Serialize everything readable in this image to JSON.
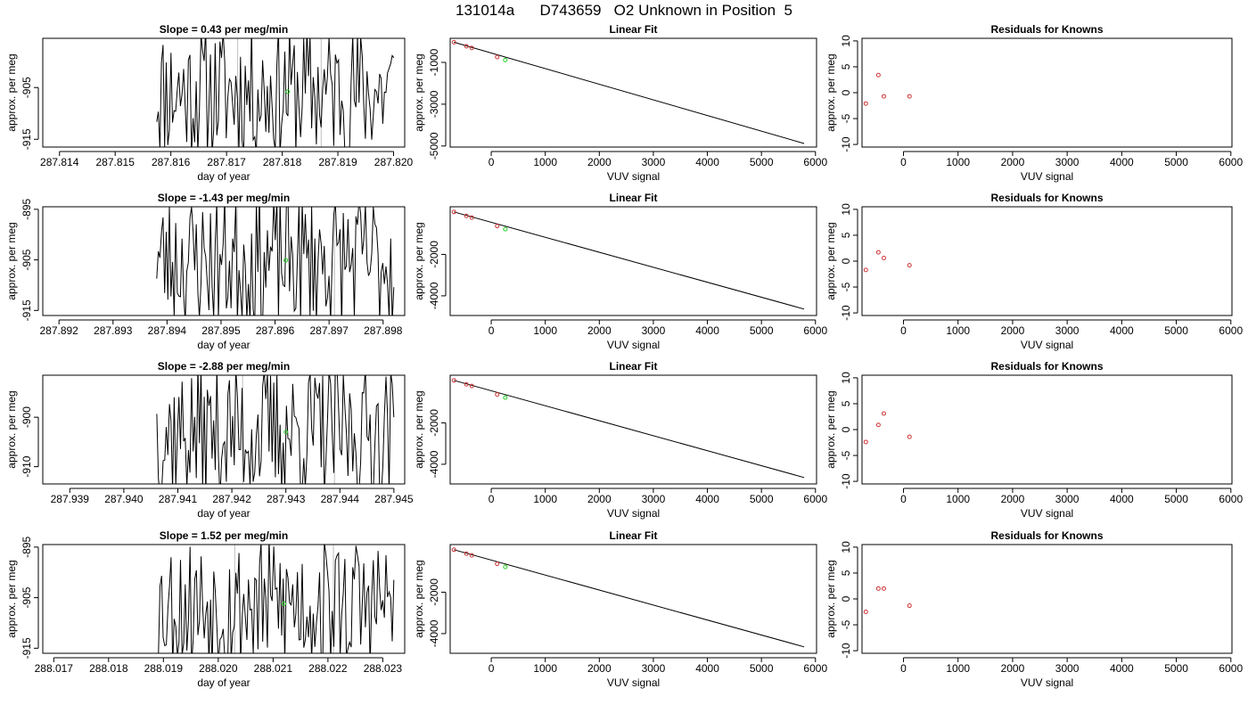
{
  "title": "131014a      D743659   O2 Unknown in Position  5",
  "colors": {
    "trace": "#000000",
    "known_points": "#cc3333",
    "unknown_point": "#22cc22",
    "marker_lines": "#bfbfbf"
  },
  "chart_data": [
    {
      "type": "line",
      "row": 0,
      "title": "Slope =  0.43  per meg/min",
      "xlabel": "day of year",
      "ylabel": "approx. per meg",
      "xlim": [
        287.8137,
        287.8202
      ],
      "ylim": [
        -916.5,
        -895.5
      ],
      "xticks": [
        287.814,
        287.815,
        287.816,
        287.817,
        287.818,
        287.819,
        287.82
      ],
      "xtick_labels": [
        "287.814",
        "287.815",
        "287.816",
        "287.817",
        "287.818",
        "287.819",
        "287.820"
      ],
      "yticks": [
        -915,
        -905
      ],
      "ytick_labels": [
        "-915",
        "-905"
      ],
      "marker_lines": [
        287.8172,
        287.8187
      ],
      "unknown_point": [
        287.8181,
        -905.8
      ],
      "trace_seed": 11
    },
    {
      "type": "scatter",
      "row": 0,
      "title": "Linear Fit",
      "xlabel": "VUV signal",
      "ylabel": "approx. per meg",
      "xlim": [
        -760,
        6020
      ],
      "ylim": [
        -5050,
        150
      ],
      "xticks": [
        0,
        1000,
        2000,
        3000,
        4000,
        5000,
        6000
      ],
      "yticks": [
        -5000,
        -3000,
        -1000
      ],
      "known_x": [
        -690,
        -460,
        -360,
        110
      ],
      "known_y": [
        -35,
        -230,
        -315,
        -745
      ],
      "unknown": [
        260,
        -890
      ],
      "fit_x": [
        -690,
        5790
      ],
      "fit_y": [
        -35,
        -4880
      ]
    },
    {
      "type": "scatter",
      "row": 0,
      "title": "Residuals for Knowns",
      "xlabel": "VUV signal",
      "ylabel": "approx. per meg",
      "xlim": [
        -760,
        6020
      ],
      "ylim": [
        -10.5,
        10.5
      ],
      "xticks": [
        0,
        1000,
        2000,
        3000,
        4000,
        5000,
        6000
      ],
      "yticks": [
        -10,
        -5,
        0,
        5,
        10
      ],
      "x": [
        -690,
        -460,
        -360,
        110
      ],
      "y": [
        -2.1,
        3.4,
        -0.7,
        -0.7
      ]
    },
    {
      "type": "line",
      "row": 1,
      "title": "Slope =  -1.43  per meg/min",
      "xlabel": "day of year",
      "ylabel": "approx. per meg",
      "xlim": [
        287.8917,
        287.8984
      ],
      "ylim": [
        -916.0,
        -894.5
      ],
      "xticks": [
        287.892,
        287.893,
        287.894,
        287.895,
        287.896,
        287.897,
        287.898
      ],
      "xtick_labels": [
        "287.892",
        "287.893",
        "287.894",
        "287.895",
        "287.896",
        "287.897",
        "287.898"
      ],
      "yticks": [
        -915,
        -905,
        -895
      ],
      "ytick_labels": [
        "-915",
        "-905",
        "-895"
      ],
      "marker_lines": [
        287.8953,
        287.8971
      ],
      "unknown_point": [
        287.8962,
        -905.1
      ],
      "trace_seed": 23
    },
    {
      "type": "scatter",
      "row": 1,
      "title": "Linear Fit",
      "xlabel": "VUV signal",
      "ylabel": "approx. per meg",
      "xlim": [
        -760,
        6020
      ],
      "ylim": [
        -4950,
        300
      ],
      "xticks": [
        0,
        1000,
        2000,
        3000,
        4000,
        5000,
        6000
      ],
      "yticks": [
        -4000,
        -2000
      ],
      "known_x": [
        -690,
        -460,
        -360,
        110
      ],
      "known_y": [
        50,
        -140,
        -220,
        -630
      ],
      "unknown": [
        260,
        -780
      ],
      "fit_x": [
        -690,
        5790
      ],
      "fit_y": [
        50,
        -4640
      ]
    },
    {
      "type": "scatter",
      "row": 1,
      "title": "Residuals for Knowns",
      "xlabel": "VUV signal",
      "ylabel": "approx. per meg",
      "xlim": [
        -760,
        6020
      ],
      "ylim": [
        -10.5,
        10.5
      ],
      "xticks": [
        0,
        1000,
        2000,
        3000,
        4000,
        5000,
        6000
      ],
      "yticks": [
        -10,
        -5,
        0,
        5,
        10
      ],
      "x": [
        -690,
        -460,
        -360,
        110
      ],
      "y": [
        -1.7,
        1.7,
        0.6,
        -0.8
      ]
    },
    {
      "type": "line",
      "row": 2,
      "title": "Slope =  -2.88  per meg/min",
      "xlabel": "day of year",
      "ylabel": "approx. per meg",
      "xlim": [
        287.9385,
        287.9452
      ],
      "ylim": [
        -913.5,
        -891.5
      ],
      "xticks": [
        287.939,
        287.94,
        287.941,
        287.942,
        287.943,
        287.944,
        287.945
      ],
      "xtick_labels": [
        "287.939",
        "287.940",
        "287.941",
        "287.942",
        "287.943",
        "287.944",
        "287.945"
      ],
      "yticks": [
        -910,
        -900
      ],
      "ytick_labels": [
        "-910",
        "-900"
      ],
      "marker_lines": [
        287.9422,
        287.9439
      ],
      "unknown_point": [
        287.943,
        -903.0
      ],
      "trace_seed": 37
    },
    {
      "type": "scatter",
      "row": 2,
      "title": "Linear Fit",
      "xlabel": "VUV signal",
      "ylabel": "approx. per meg",
      "xlim": [
        -760,
        6020
      ],
      "ylim": [
        -4950,
        300
      ],
      "xticks": [
        0,
        1000,
        2000,
        3000,
        4000,
        5000,
        6000
      ],
      "yticks": [
        -4000,
        -2000
      ],
      "known_x": [
        -690,
        -460,
        -360,
        110
      ],
      "known_y": [
        50,
        -140,
        -220,
        -630
      ],
      "unknown": [
        260,
        -780
      ],
      "fit_x": [
        -690,
        5790
      ],
      "fit_y": [
        50,
        -4640
      ]
    },
    {
      "type": "scatter",
      "row": 2,
      "title": "Residuals for Knowns",
      "xlabel": "VUV signal",
      "ylabel": "approx. per meg",
      "xlim": [
        -760,
        6020
      ],
      "ylim": [
        -10.5,
        10.5
      ],
      "xticks": [
        0,
        1000,
        2000,
        3000,
        4000,
        5000,
        6000
      ],
      "yticks": [
        -10,
        -5,
        0,
        5,
        10
      ],
      "x": [
        -690,
        -460,
        -360,
        110
      ],
      "y": [
        -2.4,
        0.9,
        3.1,
        -1.4
      ]
    },
    {
      "type": "line",
      "row": 3,
      "title": "Slope =  1.52  per meg/min",
      "xlabel": "day of year",
      "ylabel": "approx. per meg",
      "xlim": [
        288.0168,
        288.0234
      ],
      "ylim": [
        -916.0,
        -894.5
      ],
      "xticks": [
        288.017,
        288.018,
        288.019,
        288.02,
        288.021,
        288.022,
        288.023
      ],
      "xtick_labels": [
        "288.017",
        "288.018",
        "288.019",
        "288.020",
        "288.021",
        "288.022",
        "288.023"
      ],
      "yticks": [
        -915,
        -905,
        -895
      ],
      "ytick_labels": [
        "-915",
        "-905",
        "-895"
      ],
      "marker_lines": [
        288.0203,
        288.0221
      ],
      "unknown_point": [
        288.0212,
        -906.2
      ],
      "trace_seed": 53
    },
    {
      "type": "scatter",
      "row": 3,
      "title": "Linear Fit",
      "xlabel": "VUV signal",
      "ylabel": "approx. per meg",
      "xlim": [
        -760,
        6020
      ],
      "ylim": [
        -4950,
        300
      ],
      "xticks": [
        0,
        1000,
        2000,
        3000,
        4000,
        5000,
        6000
      ],
      "yticks": [
        -4000,
        -2000
      ],
      "known_x": [
        -690,
        -460,
        -360,
        110
      ],
      "known_y": [
        50,
        -140,
        -220,
        -630
      ],
      "unknown": [
        260,
        -780
      ],
      "fit_x": [
        -690,
        5790
      ],
      "fit_y": [
        50,
        -4640
      ]
    },
    {
      "type": "scatter",
      "row": 3,
      "title": "Residuals for Knowns",
      "xlabel": "VUV signal",
      "ylabel": "approx. per meg",
      "xlim": [
        -760,
        6020
      ],
      "ylim": [
        -10.5,
        10.5
      ],
      "xticks": [
        0,
        1000,
        2000,
        3000,
        4000,
        5000,
        6000
      ],
      "yticks": [
        -10,
        -5,
        0,
        5,
        10
      ],
      "x": [
        -690,
        -460,
        -360,
        110
      ],
      "y": [
        -2.5,
        2.0,
        2.0,
        -1.3
      ]
    }
  ]
}
